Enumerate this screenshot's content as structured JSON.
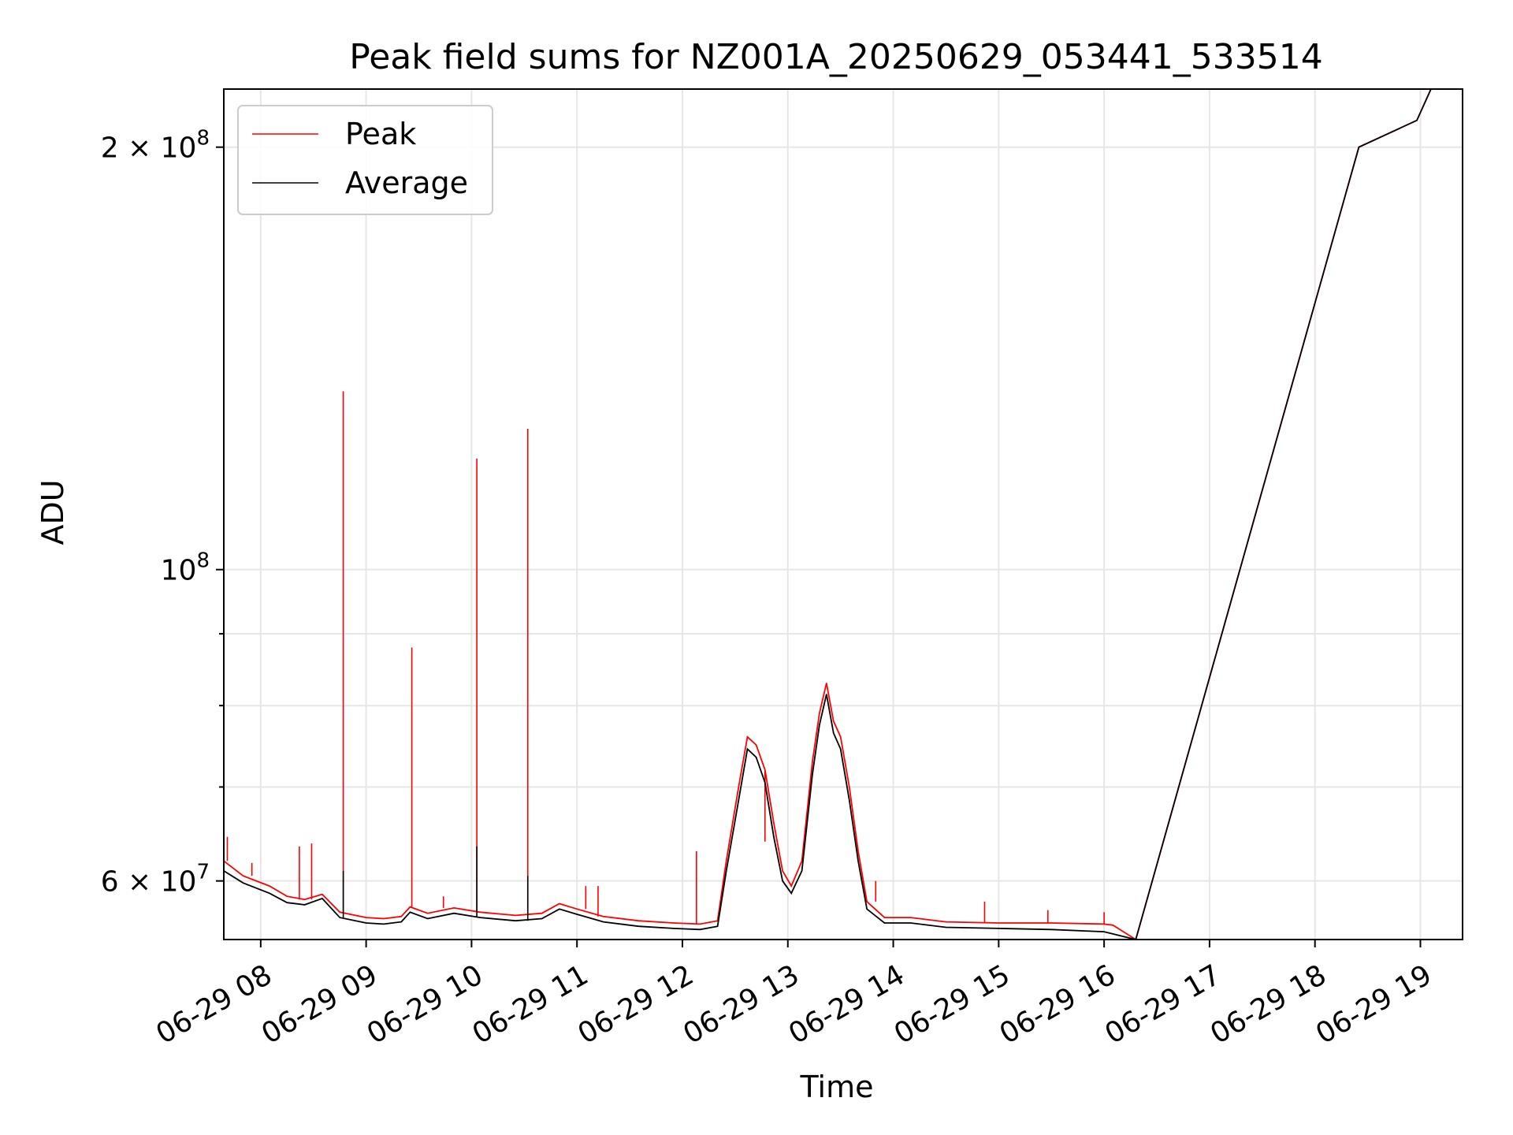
{
  "chart_data": {
    "type": "line",
    "title": "Peak field sums for NZ001A_20250629_053441_533514",
    "xlabel": "Time",
    "ylabel": "ADU",
    "y_scale": "log",
    "ylim": [
      54500000,
      220000000
    ],
    "xlim": [
      "06-29 07:39",
      "06-29 19:24"
    ],
    "grid": true,
    "legend_position": "top-left",
    "x_ticks": [
      "06-29 08",
      "06-29 09",
      "06-29 10",
      "06-29 11",
      "06-29 12",
      "06-29 13",
      "06-29 14",
      "06-29 15",
      "06-29 16",
      "06-29 17",
      "06-29 18",
      "06-29 19"
    ],
    "y_ticks": [
      {
        "value": 200000000,
        "base": "2 × 10",
        "exp": "8"
      },
      {
        "value": 100000000,
        "base": "10",
        "exp": "8"
      },
      {
        "value": 60000000,
        "base": "6 × 10",
        "exp": "7"
      }
    ],
    "series": [
      {
        "name": "Peak",
        "color": "#ff0000",
        "points": [
          [
            "06-29 07:39",
            62000000
          ],
          [
            "06-29 07:50",
            60500000
          ],
          [
            "06-29 08:05",
            59500000
          ],
          [
            "06-29 08:15",
            58500000
          ],
          [
            "06-29 08:25",
            58200000
          ],
          [
            "06-29 08:35",
            58700000
          ],
          [
            "06-29 08:45",
            57000000
          ],
          [
            "06-29 09:00",
            56500000
          ],
          [
            "06-29 09:10",
            56400000
          ],
          [
            "06-29 09:20",
            56600000
          ],
          [
            "06-29 09:25",
            57500000
          ],
          [
            "06-29 09:35",
            56900000
          ],
          [
            "06-29 09:50",
            57400000
          ],
          [
            "06-29 10:05",
            57000000
          ],
          [
            "06-29 10:25",
            56700000
          ],
          [
            "06-29 10:40",
            56900000
          ],
          [
            "06-29 10:50",
            57800000
          ],
          [
            "06-29 11:00",
            57300000
          ],
          [
            "06-29 11:15",
            56600000
          ],
          [
            "06-29 11:35",
            56200000
          ],
          [
            "06-29 11:55",
            56000000
          ],
          [
            "06-29 12:10",
            55900000
          ],
          [
            "06-29 12:20",
            56200000
          ],
          [
            "06-29 12:25",
            62000000
          ],
          [
            "06-29 12:32",
            70000000
          ],
          [
            "06-29 12:37",
            76000000
          ],
          [
            "06-29 12:42",
            75000000
          ],
          [
            "06-29 12:47",
            72000000
          ],
          [
            "06-29 12:52",
            66000000
          ],
          [
            "06-29 12:57",
            61000000
          ],
          [
            "06-29 13:02",
            59500000
          ],
          [
            "06-29 13:08",
            62000000
          ],
          [
            "06-29 13:14",
            73000000
          ],
          [
            "06-29 13:18",
            79000000
          ],
          [
            "06-29 13:22",
            83000000
          ],
          [
            "06-29 13:26",
            78000000
          ],
          [
            "06-29 13:30",
            76000000
          ],
          [
            "06-29 13:35",
            70000000
          ],
          [
            "06-29 13:40",
            63000000
          ],
          [
            "06-29 13:45",
            58000000
          ],
          [
            "06-29 13:55",
            56500000
          ],
          [
            "06-29 14:10",
            56500000
          ],
          [
            "06-29 14:30",
            56100000
          ],
          [
            "06-29 15:00",
            56000000
          ],
          [
            "06-29 15:30",
            56000000
          ],
          [
            "06-29 16:00",
            55900000
          ],
          [
            "06-29 16:05",
            55800000
          ],
          [
            "06-29 16:18",
            54500000
          ],
          [
            "06-29 18:25",
            200000000
          ],
          [
            "06-29 18:58",
            209000000
          ],
          [
            "06-29 19:06",
            220000000
          ],
          [
            "06-29 19:24",
            220000000
          ]
        ],
        "spikes": [
          [
            "06-29 07:41",
            64500000
          ],
          [
            "06-29 07:55",
            61800000
          ],
          [
            "06-29 08:22",
            63500000
          ],
          [
            "06-29 08:29",
            63800000
          ],
          [
            "06-29 08:47",
            134000000
          ],
          [
            "06-29 09:26",
            88000000
          ],
          [
            "06-29 09:44",
            58500000
          ],
          [
            "06-29 10:03",
            120000000
          ],
          [
            "06-29 10:32",
            126000000
          ],
          [
            "06-29 11:05",
            59500000
          ],
          [
            "06-29 11:12",
            59500000
          ],
          [
            "06-29 12:08",
            63000000
          ],
          [
            "06-29 12:47",
            64000000
          ],
          [
            "06-29 13:50",
            60000000
          ],
          [
            "06-29 14:52",
            58000000
          ],
          [
            "06-29 15:28",
            57200000
          ],
          [
            "06-29 16:00",
            57000000
          ]
        ]
      },
      {
        "name": "Average",
        "color": "#000000",
        "points": [
          [
            "06-29 07:39",
            61000000
          ],
          [
            "06-29 07:50",
            59800000
          ],
          [
            "06-29 08:05",
            58800000
          ],
          [
            "06-29 08:15",
            57900000
          ],
          [
            "06-29 08:25",
            57700000
          ],
          [
            "06-29 08:35",
            58300000
          ],
          [
            "06-29 08:45",
            56500000
          ],
          [
            "06-29 09:00",
            56000000
          ],
          [
            "06-29 09:10",
            55900000
          ],
          [
            "06-29 09:20",
            56100000
          ],
          [
            "06-29 09:25",
            57000000
          ],
          [
            "06-29 09:35",
            56400000
          ],
          [
            "06-29 09:50",
            56900000
          ],
          [
            "06-29 10:05",
            56500000
          ],
          [
            "06-29 10:25",
            56200000
          ],
          [
            "06-29 10:40",
            56400000
          ],
          [
            "06-29 10:50",
            57300000
          ],
          [
            "06-29 11:00",
            56800000
          ],
          [
            "06-29 11:15",
            56100000
          ],
          [
            "06-29 11:35",
            55700000
          ],
          [
            "06-29 11:55",
            55500000
          ],
          [
            "06-29 12:10",
            55400000
          ],
          [
            "06-29 12:20",
            55700000
          ],
          [
            "06-29 12:25",
            61000000
          ],
          [
            "06-29 12:32",
            68500000
          ],
          [
            "06-29 12:37",
            74500000
          ],
          [
            "06-29 12:42",
            73500000
          ],
          [
            "06-29 12:47",
            70500000
          ],
          [
            "06-29 12:52",
            64500000
          ],
          [
            "06-29 12:57",
            60000000
          ],
          [
            "06-29 13:02",
            58800000
          ],
          [
            "06-29 13:08",
            61000000
          ],
          [
            "06-29 13:14",
            71500000
          ],
          [
            "06-29 13:18",
            77500000
          ],
          [
            "06-29 13:22",
            81500000
          ],
          [
            "06-29 13:26",
            76500000
          ],
          [
            "06-29 13:30",
            74500000
          ],
          [
            "06-29 13:35",
            68500000
          ],
          [
            "06-29 13:40",
            62000000
          ],
          [
            "06-29 13:45",
            57300000
          ],
          [
            "06-29 13:55",
            56000000
          ],
          [
            "06-29 14:10",
            56000000
          ],
          [
            "06-29 14:30",
            55600000
          ],
          [
            "06-29 15:00",
            55500000
          ],
          [
            "06-29 15:30",
            55400000
          ],
          [
            "06-29 16:00",
            55200000
          ],
          [
            "06-29 16:05",
            55000000
          ],
          [
            "06-29 16:18",
            54500000
          ],
          [
            "06-29 18:25",
            200000000
          ],
          [
            "06-29 18:58",
            209000000
          ],
          [
            "06-29 19:06",
            220000000
          ],
          [
            "06-29 19:24",
            220000000
          ]
        ],
        "spikes": [
          [
            "06-29 08:47",
            61000000
          ],
          [
            "06-29 10:03",
            63500000
          ],
          [
            "06-29 10:32",
            60500000
          ]
        ]
      }
    ]
  }
}
